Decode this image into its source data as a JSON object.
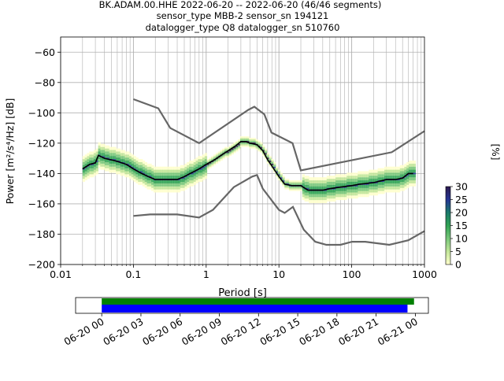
{
  "title_lines": [
    "BK.ADAM.00.HHE   2022-06-20 -- 2022-06-20  (46/46 segments)",
    "sensor_type MBB-2 sensor_sn 194121",
    "datalogger_type Q8 datalogger_sn 510760"
  ],
  "colors": {
    "nlnm_nhnm": "#666666",
    "mode_line": "#000000",
    "grid": "#b0b0b0",
    "coverage_top": "#008000",
    "coverage_bottom": "#0000ff",
    "colormap": [
      "#ffffcc",
      "#c2e699",
      "#78c679",
      "#31a354",
      "#1b7a6b",
      "#253494",
      "#2c1a4d"
    ]
  },
  "chart_data": [
    {
      "type": "heatmap",
      "xlabel": "Period [s]",
      "ylabel": "Power [m²/s⁴/Hz] [dB]",
      "x_scale": "log",
      "xlim": [
        0.01,
        1000
      ],
      "ylim": [
        -200,
        -50
      ],
      "x_ticks": [
        {
          "v": 0.01,
          "label": "0.01"
        },
        {
          "v": 0.1,
          "label": "0.1"
        },
        {
          "v": 1,
          "label": "1"
        },
        {
          "v": 10,
          "label": "10"
        },
        {
          "v": 100,
          "label": "100"
        },
        {
          "v": 1000,
          "label": "1000"
        }
      ],
      "y_ticks": [
        {
          "v": -60,
          "label": "−60"
        },
        {
          "v": -80,
          "label": "−80"
        },
        {
          "v": -100,
          "label": "−100"
        },
        {
          "v": -120,
          "label": "−120"
        },
        {
          "v": -140,
          "label": "−140"
        },
        {
          "v": -160,
          "label": "−160"
        },
        {
          "v": -180,
          "label": "−180"
        },
        {
          "v": -200,
          "label": "−200"
        }
      ],
      "grid": true,
      "nhnm": {
        "periods": [
          0.1,
          0.22,
          0.32,
          0.8,
          3.8,
          4.6,
          6.3,
          7.9,
          15.4,
          20,
          354.8,
          1000
        ],
        "power": [
          -91,
          -97,
          -110,
          -120,
          -98,
          -96,
          -101,
          -113,
          -120,
          -138,
          -126,
          -112
        ]
      },
      "nlnm": {
        "periods": [
          0.1,
          0.17,
          0.4,
          0.8,
          1.24,
          2.4,
          4.3,
          5,
          6,
          10,
          12,
          15.6,
          21.9,
          31.6,
          45,
          70,
          101,
          154,
          328,
          600,
          1000
        ],
        "power": [
          -168,
          -167,
          -167,
          -169,
          -164,
          -149,
          -142,
          -141,
          -150,
          -164,
          -166,
          -162,
          -177,
          -185,
          -187,
          -187,
          -185,
          -185,
          -187,
          -184,
          -178
        ]
      },
      "mode_curve": {
        "periods": [
          0.02,
          0.025,
          0.03,
          0.033,
          0.04,
          0.05,
          0.06,
          0.08,
          0.1,
          0.13,
          0.16,
          0.2,
          0.25,
          0.3,
          0.4,
          0.5,
          0.6,
          0.8,
          1,
          1.3,
          1.6,
          2,
          2.5,
          3,
          3.5,
          4,
          5,
          6,
          7,
          8,
          10,
          12,
          15,
          20,
          25,
          30,
          40,
          50,
          70,
          100,
          130,
          200,
          300,
          400,
          500,
          600,
          700
        ],
        "power": [
          -137,
          -134,
          -133,
          -128,
          -130,
          -131,
          -132,
          -134,
          -137,
          -140,
          -142,
          -144,
          -144,
          -144,
          -144,
          -142,
          -140,
          -137,
          -134,
          -131,
          -128,
          -125,
          -122,
          -119,
          -119,
          -120,
          -121,
          -125,
          -131,
          -135,
          -142,
          -147,
          -148,
          -148,
          -151,
          -151,
          -151,
          -150,
          -149,
          -148,
          -147,
          -146,
          -144,
          -144,
          -143,
          -140,
          -140
        ]
      },
      "colorbar": {
        "label": "[%]",
        "range": [
          0,
          30
        ],
        "ticks": [
          0,
          5,
          10,
          15,
          20,
          25,
          30
        ],
        "tick_labels": [
          "0",
          "5",
          "10",
          "15",
          "20",
          "25",
          "30"
        ]
      }
    },
    {
      "type": "bar",
      "description_free": true,
      "time_ticks": [
        "06-20 00",
        "06-20 03",
        "06-20 06",
        "06-20 09",
        "06-20 12",
        "06-20 15",
        "06-20 18",
        "06-20 21",
        "06-21 00"
      ],
      "axis_range_hours": [
        -2,
        25
      ],
      "coverage_top_hours": [
        0,
        23.9
      ],
      "coverage_bottom_hours": [
        0,
        23.4
      ]
    }
  ]
}
